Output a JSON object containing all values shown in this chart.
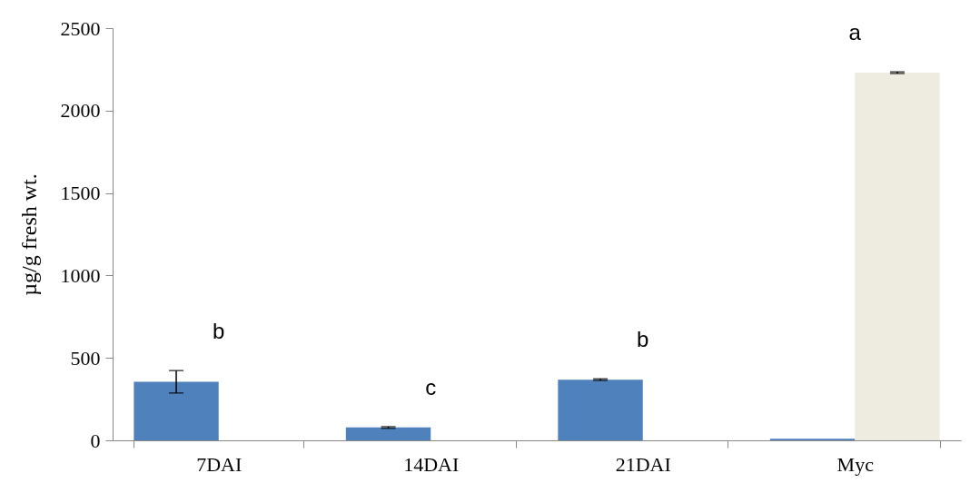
{
  "chart_data": {
    "type": "bar",
    "ylabel": "µg/g fresh wt.",
    "categories": [
      "7DAI",
      "14DAI",
      "21DAI",
      "Myc"
    ],
    "series": [
      {
        "color": "#4f81bd",
        "values": [
          355,
          78,
          368,
          10
        ],
        "errors": [
          68,
          5,
          5,
          null
        ]
      },
      {
        "color": "#eeece1",
        "values": [
          null,
          null,
          null,
          2230
        ],
        "errors": [
          null,
          null,
          null,
          5
        ]
      }
    ],
    "ylim": [
      0,
      2500
    ],
    "yticks": [
      0,
      500,
      1000,
      1500,
      2000,
      2500
    ],
    "grid": false,
    "legend": false,
    "annotations": [
      "b",
      "c",
      "b",
      "a"
    ]
  }
}
